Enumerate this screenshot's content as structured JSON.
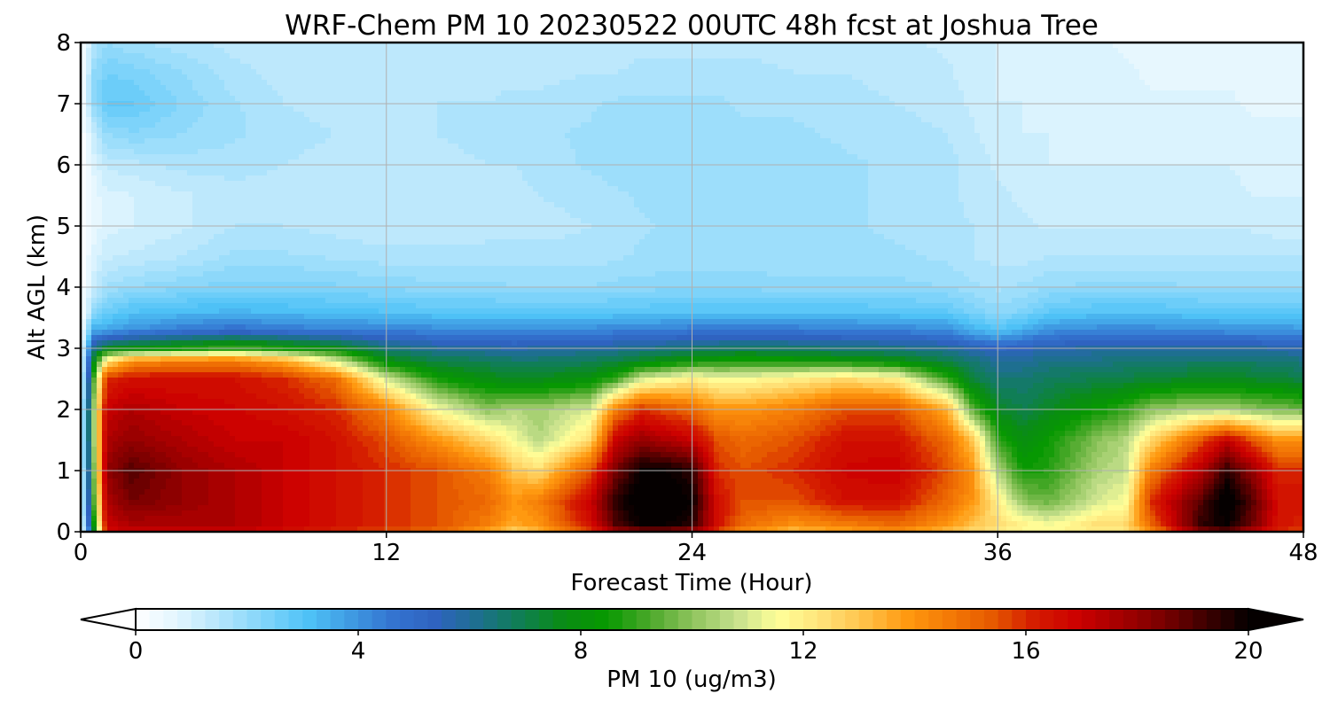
{
  "chart_data": {
    "type": "heatmap",
    "plot_kind": "filled contour",
    "title": "WRF-Chem PM 10  20230522 00UTC 48h fcst at Joshua Tree",
    "xlabel": "Forecast Time (Hour)",
    "ylabel": "Alt AGL (km)",
    "xlim": [
      0,
      48
    ],
    "ylim": [
      0,
      8
    ],
    "xticks": [
      0,
      12,
      24,
      36,
      48
    ],
    "yticks": [
      0,
      1,
      2,
      3,
      4,
      5,
      6,
      7,
      8
    ],
    "grid": true,
    "x_hours": [
      0,
      0.5,
      1,
      2,
      4,
      6,
      8,
      10,
      12,
      14,
      16,
      17,
      18,
      20,
      21,
      22,
      23,
      24,
      25,
      26,
      28,
      30,
      32,
      34,
      35,
      36,
      37,
      38,
      40,
      41,
      42,
      44,
      45,
      46,
      47,
      48
    ],
    "y_km": [
      0,
      0.1,
      0.5,
      1,
      1.5,
      2,
      2.5,
      2.8,
      3,
      3.3,
      3.6,
      4,
      4.5,
      5,
      5.5,
      6,
      6.5,
      7,
      7.5,
      8
    ],
    "z_ug_m3": [
      [
        0,
        0,
        0,
        0,
        0,
        0,
        0,
        0,
        0,
        0,
        0,
        0,
        0,
        0,
        0,
        0,
        0,
        0,
        0,
        0
      ],
      [
        6.5,
        8,
        9,
        9.5,
        10,
        10,
        9,
        7.5,
        6,
        3.5,
        2,
        1.2,
        0.8,
        0.6,
        0.6,
        0.8,
        1.2,
        2,
        2,
        1.5
      ],
      [
        16.5,
        17,
        17.5,
        18,
        17.5,
        17,
        16,
        12,
        7.5,
        3.6,
        2.6,
        1.8,
        1.2,
        0.9,
        0.9,
        1.3,
        2,
        2.8,
        2.5,
        2
      ],
      [
        17,
        17.5,
        18.5,
        19,
        18,
        17.5,
        16.5,
        14,
        8,
        4,
        3,
        2,
        1.3,
        1,
        1,
        1.4,
        2.2,
        2.8,
        2.4,
        1.8
      ],
      [
        17,
        17.5,
        18,
        18,
        17.5,
        17,
        16.5,
        14.5,
        8.5,
        4.5,
        3.2,
        2.2,
        1.5,
        1.2,
        1.2,
        1.6,
        2,
        2.2,
        2,
        1.6
      ],
      [
        17,
        17.5,
        17.5,
        17.5,
        17,
        16.8,
        16.5,
        14.5,
        9,
        4.8,
        3.3,
        2.4,
        1.8,
        1.5,
        1.4,
        1.6,
        1.8,
        1.8,
        1.6,
        1.4
      ],
      [
        16.5,
        17,
        17,
        17,
        17,
        16.5,
        16,
        13.5,
        8.5,
        4.5,
        3.2,
        2.4,
        1.8,
        1.5,
        1.4,
        1.5,
        1.6,
        1.5,
        1.4,
        1.3
      ],
      [
        16,
        16.5,
        16.5,
        16.5,
        16.5,
        16,
        15,
        11,
        7.8,
        4.4,
        3.1,
        2.3,
        1.7,
        1.4,
        1.3,
        1.4,
        1.5,
        1.4,
        1.3,
        1.3
      ],
      [
        15.5,
        16,
        16,
        16,
        15.5,
        14.5,
        11,
        7.8,
        6.5,
        4.3,
        3,
        2.2,
        1.6,
        1.3,
        1.3,
        1.4,
        1.5,
        1.4,
        1.3,
        1.3
      ],
      [
        15,
        15.5,
        15.5,
        15.5,
        14,
        11.5,
        8.5,
        7,
        6,
        4.2,
        2.9,
        2.1,
        1.6,
        1.3,
        1.3,
        1.4,
        1.5,
        1.5,
        1.3,
        1.3
      ],
      [
        13.5,
        14.5,
        15,
        14.5,
        12.5,
        10,
        7.8,
        6.8,
        5.8,
        4.2,
        2.9,
        2.1,
        1.6,
        1.4,
        1.4,
        1.5,
        1.6,
        1.5,
        1.4,
        1.3
      ],
      [
        12.5,
        13.5,
        14,
        13,
        11.5,
        10.5,
        7.5,
        6.6,
        5.7,
        4.1,
        2.8,
        2,
        1.6,
        1.4,
        1.4,
        1.5,
        1.6,
        1.6,
        1.4,
        1.3
      ],
      [
        13,
        14,
        14.5,
        12.5,
        10.5,
        10.3,
        7.6,
        6.6,
        5.8,
        4.1,
        2.8,
        2,
        1.6,
        1.4,
        1.5,
        1.6,
        1.7,
        1.6,
        1.4,
        1.3
      ],
      [
        15.5,
        16.5,
        17,
        15.5,
        12.5,
        11,
        8,
        6.8,
        5.9,
        4.2,
        2.8,
        2,
        1.6,
        1.5,
        1.6,
        1.8,
        1.8,
        1.7,
        1.5,
        1.3
      ],
      [
        17.5,
        19,
        19.5,
        18.5,
        17,
        14.5,
        9,
        7,
        6,
        4.3,
        2.9,
        2.1,
        1.7,
        1.6,
        1.7,
        1.9,
        1.9,
        1.8,
        1.5,
        1.3
      ],
      [
        18,
        20,
        20.5,
        20,
        18,
        16,
        11,
        7.5,
        6.2,
        4.3,
        2.9,
        2.1,
        1.8,
        1.7,
        1.8,
        2,
        1.9,
        1.8,
        1.6,
        1.4
      ],
      [
        18,
        20,
        20.5,
        20,
        17.5,
        15.5,
        11.5,
        7.8,
        6.3,
        4.4,
        3,
        2.2,
        1.8,
        1.8,
        1.9,
        2,
        1.9,
        1.8,
        1.6,
        1.4
      ],
      [
        17.5,
        19.5,
        20,
        19.5,
        17,
        15,
        12,
        8.2,
        6.5,
        4.5,
        3,
        2.2,
        1.8,
        1.8,
        1.9,
        2,
        1.9,
        1.8,
        1.6,
        1.4
      ],
      [
        15.5,
        16.5,
        16.5,
        16,
        15.5,
        14,
        11.5,
        8.5,
        6.6,
        4.5,
        3,
        2.2,
        1.8,
        1.8,
        1.9,
        2,
        1.9,
        1.8,
        1.6,
        1.4
      ],
      [
        14,
        15,
        15.5,
        15.5,
        15,
        14,
        11.5,
        8.6,
        6.7,
        4.5,
        3,
        2.2,
        1.8,
        1.8,
        1.9,
        1.9,
        1.8,
        1.7,
        1.6,
        1.4
      ],
      [
        13,
        14,
        15.5,
        16,
        15.5,
        14.5,
        12,
        8.5,
        6.6,
        4.5,
        3,
        2.1,
        1.8,
        1.8,
        1.9,
        1.9,
        1.8,
        1.7,
        1.5,
        1.4
      ],
      [
        13.5,
        14.5,
        16.5,
        16.8,
        16.5,
        15.5,
        12.5,
        8.2,
        6.4,
        4.4,
        3,
        2.1,
        1.8,
        1.8,
        1.8,
        1.8,
        1.7,
        1.6,
        1.5,
        1.4
      ],
      [
        14,
        15,
        16.5,
        17,
        16.5,
        15.5,
        12,
        7.8,
        6.3,
        4.3,
        2.9,
        2.1,
        1.8,
        1.7,
        1.7,
        1.7,
        1.6,
        1.5,
        1.4,
        1.3
      ],
      [
        13,
        14,
        15,
        15.5,
        15,
        13.5,
        9,
        7,
        6,
        4.1,
        2.8,
        2,
        1.7,
        1.6,
        1.6,
        1.6,
        1.5,
        1.4,
        1.3,
        1.2
      ],
      [
        12.5,
        13,
        14,
        14,
        13,
        9.5,
        7.2,
        6.5,
        5.6,
        3.4,
        2.4,
        1.8,
        1.5,
        1.5,
        1.4,
        1.4,
        1.3,
        1.2,
        1.1,
        1.1
      ],
      [
        12,
        12.5,
        12,
        10.5,
        9,
        7.5,
        6.5,
        6,
        5.2,
        3,
        2.1,
        1.7,
        1.4,
        1.3,
        1.3,
        1.2,
        1.1,
        1,
        1,
        1
      ],
      [
        11.5,
        12,
        10,
        8.5,
        7.8,
        7,
        6.5,
        6,
        5.4,
        3.5,
        2.3,
        1.8,
        1.4,
        1.3,
        1.2,
        1.1,
        1,
        1,
        0.9,
        0.9
      ],
      [
        11.5,
        11.5,
        9.6,
        8.8,
        8.5,
        7.5,
        6.8,
        6.2,
        5.7,
        4,
        2.8,
        2,
        1.5,
        1.2,
        1.1,
        1,
        1,
        0.9,
        0.9,
        0.8
      ],
      [
        12,
        12.5,
        11,
        10.5,
        10,
        8.5,
        7,
        6.3,
        5.8,
        4.2,
        3,
        2.1,
        1.5,
        1.2,
        1.1,
        1,
        0.9,
        0.9,
        0.8,
        0.8
      ],
      [
        12,
        12.5,
        11.5,
        10.8,
        10.5,
        9,
        7.1,
        6.4,
        5.8,
        4.2,
        3,
        2.1,
        1.5,
        1.2,
        1.1,
        1,
        0.9,
        0.8,
        0.8,
        0.7
      ],
      [
        14,
        15,
        16,
        14.5,
        12.5,
        10,
        7.3,
        6.5,
        5.8,
        4.2,
        3,
        2.1,
        1.5,
        1.2,
        1.1,
        1,
        0.9,
        0.8,
        0.7,
        0.7
      ],
      [
        18,
        19.5,
        19,
        17.5,
        15.5,
        10.5,
        7.5,
        6.6,
        5.8,
        4.1,
        2.9,
        2,
        1.5,
        1.2,
        1.1,
        1,
        0.9,
        0.8,
        0.7,
        0.7
      ],
      [
        18.5,
        20,
        20.5,
        19.5,
        17,
        10.5,
        7.5,
        6.6,
        5.8,
        4,
        2.8,
        2,
        1.5,
        1.2,
        1.1,
        1,
        0.9,
        0.8,
        0.7,
        0.6
      ],
      [
        17,
        18.5,
        19,
        18,
        15.5,
        10,
        7.4,
        6.6,
        5.8,
        4,
        2.8,
        2,
        1.5,
        1.2,
        1,
        0.9,
        0.8,
        0.7,
        0.7,
        0.6
      ],
      [
        16,
        16.5,
        16.5,
        16,
        14,
        9.8,
        7.3,
        6.5,
        5.7,
        4,
        2.8,
        2,
        1.5,
        1.1,
        1,
        0.9,
        0.8,
        0.7,
        0.7,
        0.6
      ],
      [
        15.5,
        16,
        16.5,
        16,
        14,
        9.6,
        7,
        6.3,
        5.6,
        3.9,
        2.8,
        2,
        1.5,
        1.1,
        1,
        0.9,
        0.8,
        0.7,
        0.7,
        0.6
      ]
    ],
    "colorbar": {
      "label": "PM 10  (ug/m3)",
      "range": [
        0,
        20
      ],
      "ticks": [
        0,
        4,
        8,
        12,
        16,
        20
      ],
      "extend": "both",
      "levels": 80,
      "colors": [
        "#ffffff",
        "#e1f5fe",
        "#b3e5fc",
        "#81d4fa",
        "#4fc3f7",
        "#3f9be3",
        "#3474d0",
        "#2f63c0",
        "#1d6f8e",
        "#0f7f52",
        "#0a8c14",
        "#079900",
        "#4aa82a",
        "#8ec45c",
        "#c4df8c",
        "#ffff99",
        "#ffe37a",
        "#ffc24a",
        "#ff9a10",
        "#f47a06",
        "#e65a00",
        "#d41c00",
        "#cc0000",
        "#a50000",
        "#7a0000",
        "#3e0000",
        "#050000"
      ]
    }
  }
}
